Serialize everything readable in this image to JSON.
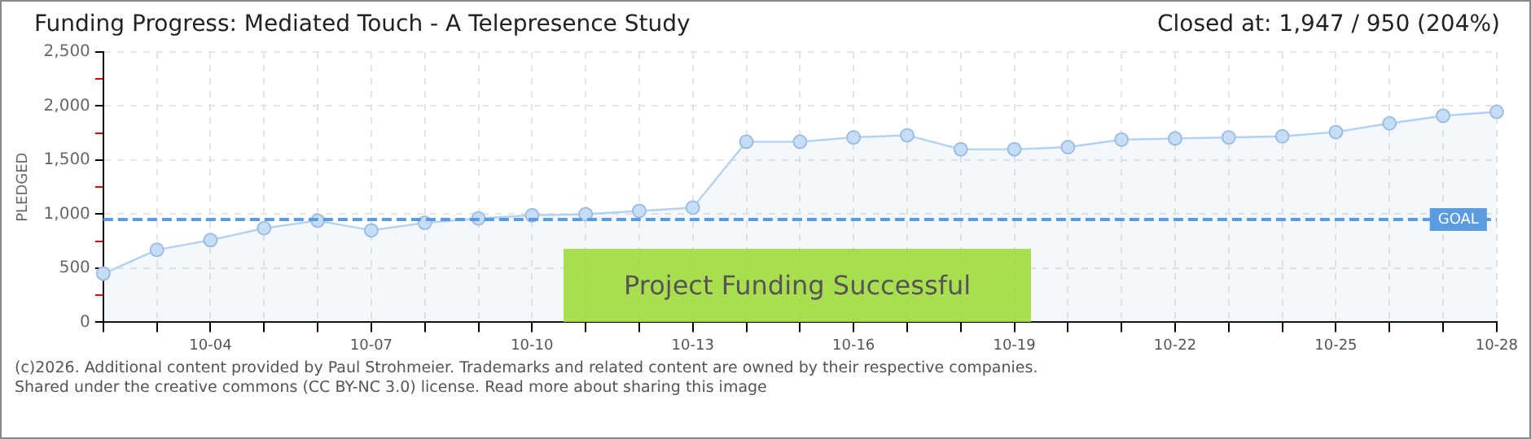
{
  "chart_data": {
    "type": "area",
    "title": "Funding Progress: Mediated Touch - A Telepresence Study",
    "subtitle": "Closed at:  1,947 /  950 (204%)",
    "ylabel": "PLEDGED",
    "categories": [
      null,
      null,
      "10-04",
      null,
      null,
      "10-07",
      null,
      null,
      "10-10",
      null,
      null,
      "10-13",
      null,
      null,
      "10-16",
      null,
      null,
      "10-19",
      null,
      null,
      "10-22",
      null,
      null,
      "10-25",
      null,
      null,
      "10-28"
    ],
    "series": [
      {
        "color": "#b3d1f2",
        "values": [
          450,
          670,
          760,
          870,
          940,
          850,
          920,
          960,
          990,
          1000,
          1030,
          1060,
          1670,
          1670,
          1710,
          1730,
          1600,
          1600,
          1620,
          1690,
          1700,
          1710,
          1720,
          1760,
          1840,
          1910,
          1947
        ]
      }
    ],
    "ylim": [
      0,
      2500
    ],
    "yticks": [
      0,
      {
        "value": 250,
        "label": null
      },
      500,
      {
        "value": 750,
        "label": null
      },
      {
        "value": 1000,
        "label": "1,000"
      },
      {
        "value": 1250,
        "label": null
      },
      {
        "value": 1500,
        "label": "1,500"
      },
      {
        "value": 1750,
        "label": null
      },
      {
        "value": 2000,
        "label": "2,000"
      },
      {
        "value": 2250,
        "label": null
      },
      {
        "value": 2500,
        "label": "2,500"
      }
    ],
    "ref_lines": [
      {
        "axis": "y",
        "value": 950,
        "label": "GOAL",
        "color": "#5b9be0",
        "line_style": "dashed"
      }
    ],
    "annotations": [
      "Project Funding Successful",
      "(c)2026. Additional content provided by Paul Strohmeier. Trademarks and related content are owned by their respective companies.",
      "Shared under the creative commons (CC BY-NC 3.0) license. Read more about sharing this image"
    ],
    "grid": true,
    "marker": "circle",
    "line_style": "solid",
    "legend": false
  }
}
